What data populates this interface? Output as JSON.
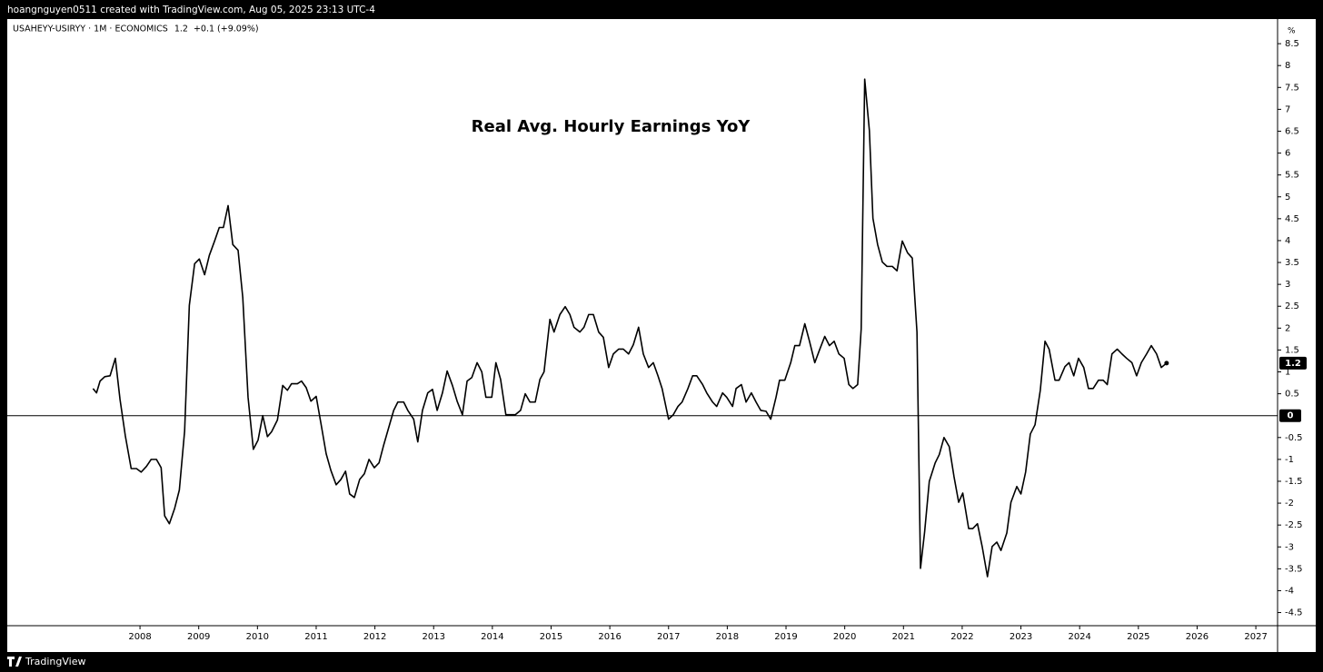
{
  "header": "hoangnguyen0511 created with TradingView.com, Aug 05, 2025 23:13 UTC-4",
  "footer": "TradingView",
  "chart_data": {
    "type": "line",
    "title": "Real Avg. Hourly Earnings YoY",
    "legend": {
      "symbol": "USAHEYY-USIRYY · 1M · ECONOMICS",
      "last_value": 1.2,
      "change": "+0.1 (+9.09%)"
    },
    "y_unit": "%",
    "hline": 0,
    "xlim": [
      2005.74,
      2027.37
    ],
    "xticks": [
      2008,
      2009,
      2010,
      2011,
      2012,
      2013,
      2014,
      2015,
      2016,
      2017,
      2018,
      2019,
      2020,
      2021,
      2022,
      2023,
      2024,
      2025,
      2026,
      2027
    ],
    "ylim": [
      -4.8,
      9.0
    ],
    "yticks": [
      -4.5,
      -4,
      -3.5,
      -3,
      -2.5,
      -2,
      -1.5,
      -1,
      -0.5,
      0.5,
      1,
      1.5,
      2,
      2.5,
      3,
      3.5,
      4,
      4.5,
      5,
      5.5,
      6,
      6.5,
      7,
      7.5,
      8,
      8.5
    ],
    "x": [
      2007.2,
      2007.26,
      2007.32,
      2007.4,
      2007.49,
      2007.58,
      2007.66,
      2007.75,
      2007.85,
      2007.94,
      2008.02,
      2008.11,
      2008.19,
      2008.28,
      2008.36,
      2008.42,
      2008.5,
      2008.59,
      2008.67,
      2008.76,
      2008.84,
      2008.93,
      2009.01,
      2009.1,
      2009.18,
      2009.27,
      2009.35,
      2009.42,
      2009.5,
      2009.58,
      2009.67,
      2009.75,
      2009.84,
      2009.93,
      2010.01,
      2010.09,
      2010.17,
      2010.24,
      2010.34,
      2010.43,
      2010.51,
      2010.58,
      2010.68,
      2010.75,
      2010.83,
      2010.91,
      2011.0,
      2011.08,
      2011.17,
      2011.25,
      2011.34,
      2011.42,
      2011.5,
      2011.57,
      2011.65,
      2011.74,
      2011.82,
      2011.9,
      2011.99,
      2012.07,
      2012.15,
      2012.24,
      2012.32,
      2012.39,
      2012.49,
      2012.56,
      2012.66,
      2012.73,
      2012.81,
      2012.9,
      2012.98,
      2013.06,
      2013.15,
      2013.23,
      2013.32,
      2013.4,
      2013.49,
      2013.57,
      2013.65,
      2013.74,
      2013.82,
      2013.89,
      2013.99,
      2014.06,
      2014.14,
      2014.23,
      2014.31,
      2014.39,
      2014.48,
      2014.56,
      2014.64,
      2014.73,
      2014.81,
      2014.88,
      2014.98,
      2015.05,
      2015.15,
      2015.24,
      2015.32,
      2015.39,
      2015.49,
      2015.56,
      2015.64,
      2015.72,
      2015.81,
      2015.89,
      2015.98,
      2016.06,
      2016.15,
      2016.23,
      2016.32,
      2016.4,
      2016.49,
      2016.57,
      2016.66,
      2016.74,
      2016.82,
      2016.89,
      2017.0,
      2017.08,
      2017.16,
      2017.23,
      2017.33,
      2017.41,
      2017.48,
      2017.58,
      2017.65,
      2017.75,
      2017.82,
      2017.92,
      2017.99,
      2018.09,
      2018.15,
      2018.24,
      2018.32,
      2018.41,
      2018.49,
      2018.57,
      2018.66,
      2018.74,
      2018.83,
      2018.89,
      2018.98,
      2019.08,
      2019.15,
      2019.23,
      2019.32,
      2019.4,
      2019.49,
      2019.57,
      2019.66,
      2019.74,
      2019.82,
      2019.9,
      2019.99,
      2020.07,
      2020.14,
      2020.22,
      2020.28,
      2020.34,
      2020.42,
      2020.48,
      2020.56,
      2020.64,
      2020.72,
      2020.81,
      2020.89,
      2020.98,
      2021.07,
      2021.15,
      2021.23,
      2021.29,
      2021.36,
      2021.44,
      2021.54,
      2021.61,
      2021.69,
      2021.78,
      2021.86,
      2021.94,
      2022.01,
      2022.11,
      2022.18,
      2022.26,
      2022.34,
      2022.43,
      2022.51,
      2022.59,
      2022.66,
      2022.76,
      2022.83,
      2022.93,
      2023.0,
      2023.08,
      2023.16,
      2023.24,
      2023.33,
      2023.41,
      2023.48,
      2023.58,
      2023.65,
      2023.75,
      2023.82,
      2023.9,
      2023.98,
      2024.07,
      2024.15,
      2024.23,
      2024.32,
      2024.4,
      2024.47,
      2024.55,
      2024.64,
      2024.72,
      2024.8,
      2024.89,
      2024.97,
      2025.05,
      2025.14,
      2025.22,
      2025.31,
      2025.39,
      2025.48
    ],
    "series": [
      {
        "name": "USAHEYY-USIRYY",
        "color": "#000000",
        "values": [
          0.62,
          0.52,
          0.79,
          0.89,
          0.91,
          1.31,
          0.37,
          -0.46,
          -1.21,
          -1.21,
          -1.29,
          -1.16,
          -1.0,
          -1.0,
          -1.19,
          -2.29,
          -2.47,
          -2.12,
          -1.7,
          -0.35,
          2.52,
          3.47,
          3.58,
          3.22,
          3.66,
          3.99,
          4.3,
          4.3,
          4.8,
          3.91,
          3.78,
          2.7,
          0.42,
          -0.77,
          -0.56,
          0,
          -0.48,
          -0.37,
          -0.1,
          0.69,
          0.58,
          0.73,
          0.73,
          0.79,
          0.64,
          0.33,
          0.44,
          -0.17,
          -0.87,
          -1.25,
          -1.58,
          -1.46,
          -1.27,
          -1.79,
          -1.87,
          -1.46,
          -1.33,
          -1.0,
          -1.19,
          -1.08,
          -0.67,
          -0.25,
          0.12,
          0.31,
          0.31,
          0.12,
          -0.08,
          -0.6,
          0.12,
          0.52,
          0.6,
          0.12,
          0.52,
          1.02,
          0.69,
          0.33,
          0.02,
          0.79,
          0.87,
          1.21,
          1.0,
          0.42,
          0.42,
          1.21,
          0.83,
          0.02,
          0.02,
          0.02,
          0.12,
          0.5,
          0.31,
          0.31,
          0.83,
          1.0,
          2.2,
          1.91,
          2.31,
          2.49,
          2.31,
          2.02,
          1.91,
          2.02,
          2.31,
          2.31,
          1.91,
          1.79,
          1.1,
          1.41,
          1.52,
          1.52,
          1.41,
          1.62,
          2.02,
          1.41,
          1.1,
          1.21,
          0.91,
          0.62,
          -0.08,
          0.02,
          0.21,
          0.31,
          0.62,
          0.91,
          0.91,
          0.71,
          0.52,
          0.31,
          0.21,
          0.52,
          0.42,
          0.21,
          0.62,
          0.71,
          0.31,
          0.52,
          0.31,
          0.12,
          0.1,
          -0.08,
          0.42,
          0.81,
          0.81,
          1.21,
          1.6,
          1.6,
          2.1,
          1.7,
          1.21,
          1.5,
          1.81,
          1.6,
          1.7,
          1.41,
          1.31,
          0.71,
          0.62,
          0.71,
          1.98,
          7.69,
          6.51,
          4.51,
          3.91,
          3.51,
          3.41,
          3.41,
          3.31,
          3.99,
          3.72,
          3.6,
          1.91,
          -3.49,
          -2.66,
          -1.5,
          -1.08,
          -0.89,
          -0.5,
          -0.71,
          -1.39,
          -1.98,
          -1.77,
          -2.58,
          -2.58,
          -2.47,
          -2.99,
          -3.68,
          -2.99,
          -2.89,
          -3.08,
          -2.68,
          -1.98,
          -1.62,
          -1.79,
          -1.29,
          -0.42,
          -0.21,
          0.58,
          1.7,
          1.52,
          0.81,
          0.81,
          1.12,
          1.21,
          0.91,
          1.31,
          1.1,
          0.62,
          0.62,
          0.81,
          0.81,
          0.71,
          1.41,
          1.52,
          1.41,
          1.31,
          1.21,
          0.91,
          1.21,
          1.41,
          1.6,
          1.41,
          1.1,
          1.2
        ]
      }
    ]
  }
}
